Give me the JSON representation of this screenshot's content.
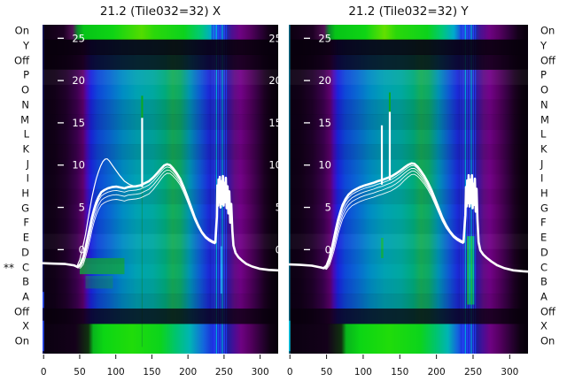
{
  "titles": {
    "left": "21.2 (Tile032=32) X",
    "right": "21.2 (Tile032=32) Y"
  },
  "row_marker": {
    "text": "**",
    "row_index": 16
  },
  "side_labels": [
    "On",
    "Y",
    "Off",
    "P",
    "O",
    "N",
    "M",
    "L",
    "K",
    "J",
    "I",
    "H",
    "G",
    "F",
    "E",
    "D",
    "C",
    "B",
    "A",
    "Off",
    "X",
    "On"
  ],
  "axes": {
    "x_ticks": [
      0,
      50,
      100,
      150,
      200,
      250,
      300
    ],
    "y_ticks": [
      25,
      20,
      15,
      10,
      5,
      0
    ],
    "xlim": [
      -1.5,
      325
    ],
    "ylim": [
      -12.3,
      26.6
    ]
  },
  "palette": {
    "curve": "#ffffff",
    "spike_green": "#0ca81e",
    "tick_color": "#111111",
    "inner_label_color": "#ffffff",
    "dark_row_color": "#08000c"
  },
  "heatmap_style": {
    "base_stops": [
      [
        0.0,
        "#0b0113"
      ],
      [
        0.05,
        "#110117"
      ],
      [
        0.1,
        "#20012a"
      ],
      [
        0.145,
        "#3c014e"
      ],
      [
        0.172,
        "#5e016e"
      ],
      [
        0.188,
        "#4a0ab8"
      ],
      [
        0.205,
        "#1b23dd"
      ],
      [
        0.235,
        "#0e47d8"
      ],
      [
        0.285,
        "#0967d2"
      ],
      [
        0.34,
        "#008cc4"
      ],
      [
        0.4,
        "#00a2b2"
      ],
      [
        0.47,
        "#00a8a0"
      ],
      [
        0.52,
        "#00aa7c"
      ],
      [
        0.552,
        "#16ac58"
      ],
      [
        0.585,
        "#0ca868"
      ],
      [
        0.625,
        "#0092b4"
      ],
      [
        0.668,
        "#0e5ad2"
      ],
      [
        0.705,
        "#1b2ad8"
      ],
      [
        0.728,
        "#1c20b2"
      ],
      [
        0.772,
        "#1c1e9e"
      ],
      [
        0.795,
        "#41129a"
      ],
      [
        0.815,
        "#620d86"
      ],
      [
        0.84,
        "#730289"
      ],
      [
        0.872,
        "#5c0169"
      ],
      [
        0.908,
        "#3a0147"
      ],
      [
        0.942,
        "#1c0122"
      ],
      [
        0.972,
        "#0c010f"
      ],
      [
        1.0,
        "#060009"
      ]
    ],
    "row_shades": [
      0,
      0.9,
      0.78,
      -0.05,
      0,
      0.1,
      0.14,
      0.05,
      0.12,
      0.04,
      0,
      0.08,
      0,
      0.05,
      -0.04,
      0.04,
      0,
      0.06,
      0.13,
      0.78,
      0,
      0
    ],
    "stripe_channels": [
      {
        "x": 233.5,
        "c": "#1e3ae6"
      },
      {
        "x": 236.5,
        "c": "#2b46ff"
      },
      {
        "x": 239.5,
        "c": "#00b4e6"
      },
      {
        "x": 242.0,
        "c": "#2b46ff"
      },
      {
        "x": 244.8,
        "c": "#2b46ff"
      },
      {
        "x": 247.6,
        "c": "#00b4e6"
      },
      {
        "x": 250.4,
        "c": "#2b46ff"
      },
      {
        "x": 253.2,
        "c": "#1e3ae6"
      }
    ]
  },
  "chart_data": [
    {
      "type": "heatmap+line",
      "title": "21.2 (Tile032=32) X",
      "polarization": "X",
      "top_row_stops": [
        [
          0,
          "#0b0110"
        ],
        [
          0.09,
          "#1e0124"
        ],
        [
          0.128,
          "#521055"
        ],
        [
          0.148,
          "#0c8a2a"
        ],
        [
          0.175,
          "#06c417"
        ],
        [
          0.3,
          "#0ed414"
        ],
        [
          0.42,
          "#52dc00"
        ],
        [
          0.475,
          "#2ad80a"
        ],
        [
          0.6,
          "#0cd21c"
        ],
        [
          0.672,
          "#00c878"
        ],
        [
          0.718,
          "#00aacc"
        ],
        [
          0.74,
          "#1b50dd"
        ],
        [
          0.782,
          "#1c2aa6"
        ],
        [
          0.802,
          "#4a1192"
        ],
        [
          0.838,
          "#6e0283"
        ],
        [
          0.878,
          "#570163"
        ],
        [
          0.918,
          "#330140"
        ],
        [
          0.958,
          "#14011a"
        ],
        [
          1,
          "#07000a"
        ]
      ],
      "bottom_row_stops": [
        [
          0,
          "#0a0110"
        ],
        [
          0.14,
          "#14011a"
        ],
        [
          0.195,
          "#10320f"
        ],
        [
          0.215,
          "#08b41c"
        ],
        [
          0.26,
          "#0cd614"
        ],
        [
          0.38,
          "#20dc0a"
        ],
        [
          0.5,
          "#0cd41c"
        ],
        [
          0.565,
          "#00c46e"
        ],
        [
          0.625,
          "#00b4b4"
        ],
        [
          0.685,
          "#1464dd"
        ],
        [
          0.725,
          "#1b2ad8"
        ],
        [
          0.785,
          "#1c1e9e"
        ],
        [
          0.812,
          "#480e96"
        ],
        [
          0.842,
          "#6e0283"
        ],
        [
          0.88,
          "#560062"
        ],
        [
          0.93,
          "#2a0134"
        ],
        [
          0.968,
          "#0e0112"
        ],
        [
          1,
          "#06000a"
        ]
      ],
      "blobs": [
        {
          "x": [
            50,
            112
          ],
          "y": [
            -2.9,
            -1.0
          ],
          "color": "#12a63e",
          "opacity": 0.8
        },
        {
          "x": [
            58,
            96
          ],
          "y": [
            -4.6,
            -3.1
          ],
          "color": "#12a63e",
          "opacity": 0.4
        }
      ],
      "stripe_bars": {
        "lines": [
          246.5
        ],
        "y": [
          -5.2,
          0.4
        ],
        "colors": [
          "#2bb4ff"
        ],
        "width": 2.2,
        "opacity": 0.8
      },
      "rfi_line": {
        "x": 136.5,
        "y": [
          -11.5,
          15.6
        ],
        "color": "#0f8c32",
        "opacity": 0.45
      },
      "edge_line": {
        "color": "#2538cc",
        "opacity": 0.45,
        "bright_color": "#2b50ff",
        "bright_segments": [
          [
            -6.9,
            -5.0
          ],
          [
            -12.0,
            -8.4
          ]
        ]
      },
      "main_curve": [
        [
          -1.5,
          -1.6
        ],
        [
          14,
          -1.65
        ],
        [
          30,
          -1.7
        ],
        [
          42,
          -1.85
        ],
        [
          47,
          -2.05
        ],
        [
          51,
          -1.7
        ],
        [
          55,
          -0.9
        ],
        [
          58,
          0.2
        ],
        [
          61,
          1.4
        ],
        [
          64,
          2.6
        ],
        [
          67,
          3.8
        ],
        [
          70,
          4.8
        ],
        [
          73,
          5.6
        ],
        [
          76,
          6.2
        ],
        [
          80,
          6.8
        ],
        [
          84,
          7.05
        ],
        [
          89,
          7.25
        ],
        [
          95,
          7.4
        ],
        [
          101,
          7.45
        ],
        [
          107,
          7.35
        ],
        [
          112,
          7.25
        ],
        [
          117,
          7.4
        ],
        [
          122,
          7.45
        ],
        [
          128,
          7.5
        ],
        [
          134,
          7.6
        ],
        [
          140,
          7.85
        ],
        [
          146,
          8.1
        ],
        [
          152,
          8.55
        ],
        [
          158,
          9.1
        ],
        [
          163,
          9.6
        ],
        [
          167,
          9.95
        ],
        [
          171,
          10.1
        ],
        [
          175,
          10.0
        ],
        [
          179,
          9.65
        ],
        [
          184,
          9.1
        ],
        [
          189,
          8.4
        ],
        [
          194,
          7.4
        ],
        [
          199,
          6.3
        ],
        [
          204,
          5.1
        ],
        [
          209,
          3.9
        ],
        [
          214,
          2.9
        ],
        [
          219,
          2.1
        ],
        [
          224,
          1.55
        ],
        [
          229,
          1.2
        ],
        [
          234,
          0.95
        ],
        [
          238,
          0.85
        ],
        [
          240,
          3.9
        ],
        [
          240.8,
          7.6
        ],
        [
          241.6,
          5.2
        ],
        [
          242.4,
          8.3
        ],
        [
          243.4,
          5.6
        ],
        [
          244.2,
          8.6
        ],
        [
          245.2,
          5.0
        ],
        [
          246.4,
          8.1
        ],
        [
          247.4,
          5.4
        ],
        [
          248.4,
          8.7
        ],
        [
          249.4,
          5.2
        ],
        [
          250.4,
          7.9
        ],
        [
          251.4,
          5.6
        ],
        [
          252.4,
          8.5
        ],
        [
          253.6,
          4.9
        ],
        [
          254.8,
          7.5
        ],
        [
          256,
          4.3
        ],
        [
          257.2,
          6.9
        ],
        [
          258.6,
          3.2
        ],
        [
          260,
          5.4
        ],
        [
          261.5,
          2.2
        ],
        [
          263,
          0.5
        ],
        [
          266,
          -0.4
        ],
        [
          270,
          -0.9
        ],
        [
          275,
          -1.3
        ],
        [
          281,
          -1.7
        ],
        [
          289,
          -2.0
        ],
        [
          299,
          -2.25
        ],
        [
          312,
          -2.4
        ],
        [
          325,
          -2.45
        ]
      ],
      "hump_curve": [
        [
          46,
          -2.0
        ],
        [
          50,
          -1.2
        ],
        [
          54,
          0.2
        ],
        [
          58,
          1.8
        ],
        [
          61,
          3.3
        ],
        [
          64,
          4.8
        ],
        [
          67,
          6.2
        ],
        [
          70,
          7.4
        ],
        [
          73,
          8.4
        ],
        [
          76,
          9.2
        ],
        [
          79,
          9.9
        ],
        [
          82,
          10.4
        ],
        [
          85,
          10.7
        ],
        [
          88,
          10.75
        ],
        [
          91,
          10.5
        ],
        [
          95,
          10.0
        ],
        [
          100,
          9.4
        ],
        [
          106,
          8.7
        ],
        [
          112,
          8.1
        ],
        [
          119,
          7.7
        ],
        [
          126,
          7.5
        ],
        [
          133,
          7.6
        ]
      ],
      "sub_trace_offsets": [
        0.45,
        0.95,
        1.5
      ],
      "spikes": [
        {
          "x": 136.5,
          "base": 7.6,
          "white_top": 15.6,
          "green_top": 18.2
        }
      ],
      "clipped_right_labels": true
    },
    {
      "type": "heatmap+line",
      "title": "21.2 (Tile032=32) Y",
      "polarization": "Y",
      "top_row_stops": [
        [
          0,
          "#0b0110"
        ],
        [
          0.1,
          "#1e0124"
        ],
        [
          0.148,
          "#521055"
        ],
        [
          0.168,
          "#0c8a2a"
        ],
        [
          0.195,
          "#06c417"
        ],
        [
          0.32,
          "#0ed414"
        ],
        [
          0.4,
          "#62e000"
        ],
        [
          0.45,
          "#2ad80a"
        ],
        [
          0.58,
          "#0cd21c"
        ],
        [
          0.64,
          "#00c878"
        ],
        [
          0.69,
          "#00aacc"
        ],
        [
          0.72,
          "#1b50dd"
        ],
        [
          0.782,
          "#1c2aa6"
        ],
        [
          0.802,
          "#4a1192"
        ],
        [
          0.838,
          "#6e0283"
        ],
        [
          0.878,
          "#570163"
        ],
        [
          0.918,
          "#330140"
        ],
        [
          0.958,
          "#14011a"
        ],
        [
          1,
          "#07000a"
        ]
      ],
      "bottom_row_stops": [
        [
          0,
          "#0a0110"
        ],
        [
          0.16,
          "#14011a"
        ],
        [
          0.22,
          "#10320f"
        ],
        [
          0.24,
          "#08b41c"
        ],
        [
          0.3,
          "#0cd614"
        ],
        [
          0.42,
          "#20dc0a"
        ],
        [
          0.55,
          "#0cd41c"
        ],
        [
          0.615,
          "#00c46e"
        ],
        [
          0.665,
          "#00b4b4"
        ],
        [
          0.705,
          "#1464dd"
        ],
        [
          0.735,
          "#1b2ad8"
        ],
        [
          0.785,
          "#1c1e9e"
        ],
        [
          0.812,
          "#480e96"
        ],
        [
          0.842,
          "#6e0283"
        ],
        [
          0.88,
          "#560062"
        ],
        [
          0.93,
          "#2a0134"
        ],
        [
          0.968,
          "#0e0112"
        ],
        [
          1,
          "#06000a"
        ]
      ],
      "blobs": [
        {
          "x": [
            124.5,
            127.5
          ],
          "y": [
            -1.0,
            1.4
          ],
          "color": "#12b43e",
          "opacity": 0.9
        }
      ],
      "stripe_bars": {
        "lines": [
          243,
          245.5,
          248,
          250.5
        ],
        "y": [
          -6.5,
          1.6
        ],
        "colors": [
          "#12c83c",
          "#00c8a0",
          "#18d448",
          "#00c8a0"
        ],
        "width": 1.8,
        "opacity": 0.95
      },
      "rfi_line": null,
      "edge_line": {
        "color": "#00b4d8",
        "opacity": 0.6,
        "bright_color": "#00c8e6",
        "bright_segments": [
          [
            -12.0,
            -8.4
          ]
        ]
      },
      "main_curve": [
        [
          -1.5,
          -1.75
        ],
        [
          14,
          -1.8
        ],
        [
          30,
          -1.9
        ],
        [
          42,
          -2.1
        ],
        [
          46,
          -2.2
        ],
        [
          50,
          -1.9
        ],
        [
          54,
          -1.0
        ],
        [
          57,
          0.1
        ],
        [
          60,
          1.3
        ],
        [
          63,
          2.5
        ],
        [
          66,
          3.6
        ],
        [
          69,
          4.5
        ],
        [
          72,
          5.3
        ],
        [
          76,
          6.0
        ],
        [
          80,
          6.5
        ],
        [
          85,
          6.9
        ],
        [
          90,
          7.15
        ],
        [
          96,
          7.4
        ],
        [
          102,
          7.6
        ],
        [
          108,
          7.75
        ],
        [
          114,
          7.9
        ],
        [
          120,
          8.1
        ],
        [
          126,
          8.25
        ],
        [
          132,
          8.45
        ],
        [
          138,
          8.65
        ],
        [
          144,
          8.95
        ],
        [
          150,
          9.3
        ],
        [
          156,
          9.7
        ],
        [
          161,
          10.0
        ],
        [
          166,
          10.2
        ],
        [
          170,
          10.15
        ],
        [
          174,
          9.85
        ],
        [
          178,
          9.4
        ],
        [
          183,
          8.75
        ],
        [
          188,
          8.0
        ],
        [
          193,
          7.1
        ],
        [
          198,
          6.0
        ],
        [
          203,
          4.9
        ],
        [
          208,
          3.8
        ],
        [
          213,
          2.9
        ],
        [
          218,
          2.2
        ],
        [
          223,
          1.65
        ],
        [
          228,
          1.3
        ],
        [
          233,
          1.05
        ],
        [
          237,
          0.9
        ],
        [
          239.5,
          4.1
        ],
        [
          240.3,
          7.4
        ],
        [
          241.2,
          5.1
        ],
        [
          242,
          8.2
        ],
        [
          243,
          5.5
        ],
        [
          244,
          8.8
        ],
        [
          245.2,
          5.1
        ],
        [
          246.4,
          8.3
        ],
        [
          247.4,
          5.5
        ],
        [
          248.4,
          8.8
        ],
        [
          249.4,
          4.9
        ],
        [
          250.4,
          7.8
        ],
        [
          251.4,
          5.3
        ],
        [
          252.4,
          8.4
        ],
        [
          253.6,
          4.5
        ],
        [
          254.8,
          7.2
        ],
        [
          256,
          3.6
        ],
        [
          257.5,
          0.9
        ],
        [
          260,
          -0.1
        ],
        [
          264,
          -0.6
        ],
        [
          269,
          -1.0
        ],
        [
          275,
          -1.4
        ],
        [
          283,
          -1.85
        ],
        [
          293,
          -2.2
        ],
        [
          305,
          -2.45
        ],
        [
          318,
          -2.55
        ],
        [
          325,
          -2.6
        ]
      ],
      "hump_curve": [],
      "sub_trace_offsets": [
        0.35,
        0.75,
        1.2,
        1.7
      ],
      "spikes": [
        {
          "x": 125.5,
          "base": 7.9,
          "white_top": 14.7,
          "green_top": null
        },
        {
          "x": 136.3,
          "base": 8.4,
          "white_top": 16.3,
          "green_top": 18.6
        }
      ],
      "clipped_right_labels": false
    }
  ]
}
